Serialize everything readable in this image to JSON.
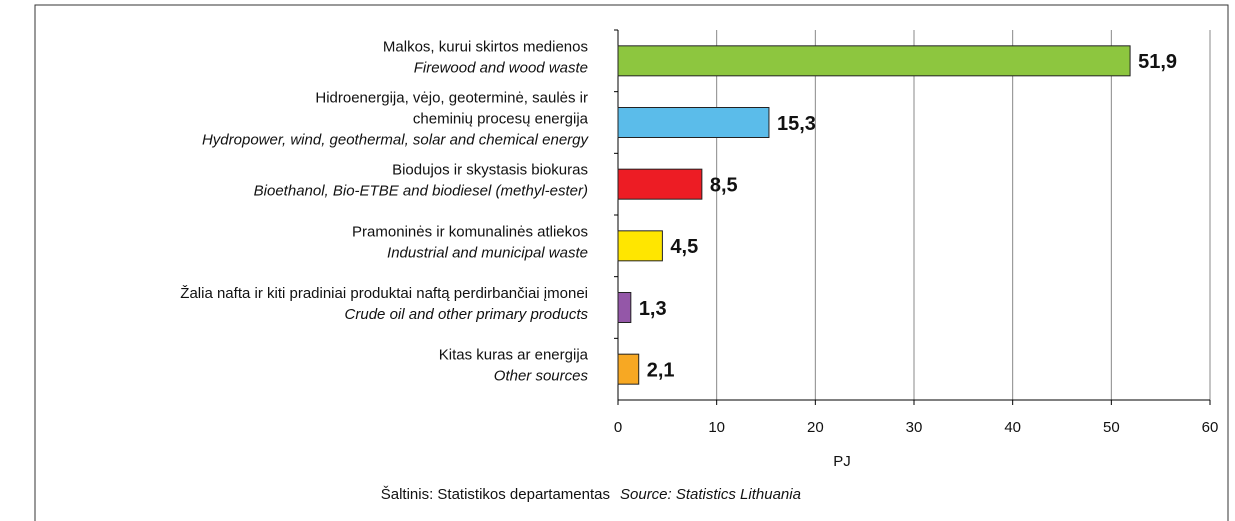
{
  "chart_data": {
    "type": "hbar",
    "categories": [
      {
        "lt": [
          "Malkos, kurui skirtos medienos"
        ],
        "en": [
          "Firewood and wood waste"
        ]
      },
      {
        "lt": [
          "Hidroenergija, vėjo, geoterminė, saulės ir",
          "cheminių procesų energija"
        ],
        "en": [
          "Hydropower, wind, geothermal, solar and chemical energy"
        ]
      },
      {
        "lt": [
          "Biodujos ir skystasis biokuras"
        ],
        "en": [
          "Bioethanol, Bio-ETBE and biodiesel (methyl-ester)"
        ]
      },
      {
        "lt": [
          "Pramoninės ir komunalinės atliekos"
        ],
        "en": [
          "Industrial and municipal waste"
        ]
      },
      {
        "lt": [
          "Žalia nafta ir kiti pradiniai produktai naftą perdirbančiai įmonei"
        ],
        "en": [
          "Crude oil and other primary products"
        ]
      },
      {
        "lt": [
          "Kitas kuras ar energija"
        ],
        "en": [
          "Other sources"
        ]
      }
    ],
    "values": [
      51.9,
      15.3,
      8.5,
      4.5,
      1.3,
      2.1
    ],
    "value_labels": [
      "51,9",
      "15,3",
      "8,5",
      "4,5",
      "1,3",
      "2,1"
    ],
    "colors": [
      "#8dc63f",
      "#5bbcea",
      "#ed1c24",
      "#ffe600",
      "#9457a8",
      "#f7a823"
    ],
    "xlim": [
      0,
      60
    ],
    "xticks": [
      0,
      10,
      20,
      30,
      40,
      50,
      60
    ],
    "grid": true,
    "xlabel": "PJ",
    "source": {
      "lt": "Šaltinis: Statistikos departamentas",
      "en": "Source: Statistics Lithuania"
    }
  }
}
